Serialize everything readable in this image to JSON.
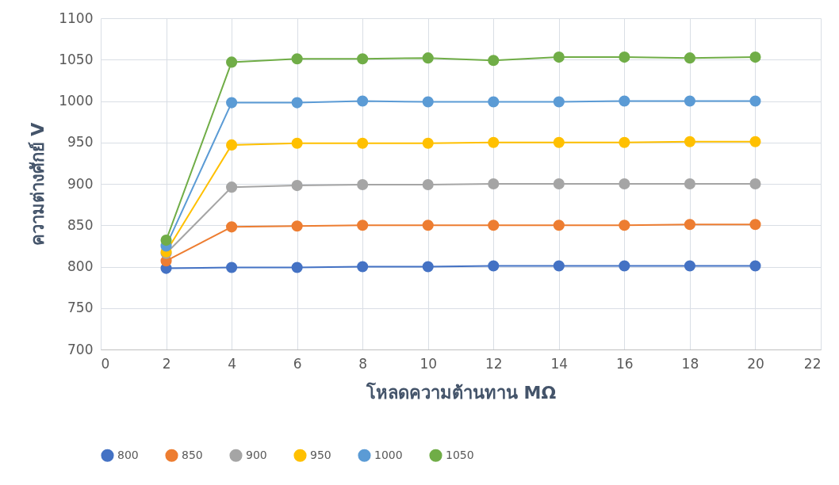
{
  "chart_data": {
    "type": "line",
    "xlabel": "โหลดความต้านทาน MΩ",
    "ylabel": "ความต่างศักย์ V",
    "x": [
      2,
      4,
      6,
      8,
      10,
      12,
      14,
      16,
      18,
      20
    ],
    "series": [
      {
        "name": "800",
        "color": "#4472c4",
        "values": [
          798,
          799,
          799,
          800,
          800,
          801,
          801,
          801,
          801,
          801
        ]
      },
      {
        "name": "850",
        "color": "#ed7d31",
        "values": [
          807,
          848,
          849,
          850,
          850,
          850,
          850,
          850,
          851,
          851
        ]
      },
      {
        "name": "900",
        "color": "#a5a5a5",
        "values": [
          816,
          896,
          898,
          899,
          899,
          900,
          900,
          900,
          900,
          900
        ]
      },
      {
        "name": "950",
        "color": "#ffc000",
        "values": [
          818,
          947,
          949,
          949,
          949,
          950,
          950,
          950,
          951,
          951
        ]
      },
      {
        "name": "1000",
        "color": "#5b9bd5",
        "values": [
          825,
          998,
          998,
          1000,
          999,
          999,
          999,
          1000,
          1000,
          1000
        ]
      },
      {
        "name": "1050",
        "color": "#70ad47",
        "values": [
          832,
          1047,
          1051,
          1051,
          1052,
          1049,
          1053,
          1053,
          1052,
          1053
        ]
      }
    ],
    "xlim": [
      0,
      22
    ],
    "xticks": [
      0,
      2,
      4,
      6,
      8,
      10,
      12,
      14,
      16,
      18,
      20,
      22
    ],
    "ylim": [
      700,
      1100
    ],
    "yticks": [
      700,
      750,
      800,
      850,
      900,
      950,
      1000,
      1050,
      1100
    ],
    "grid": true,
    "legend": "bottom",
    "marker": "circle",
    "line_style": "solid"
  }
}
